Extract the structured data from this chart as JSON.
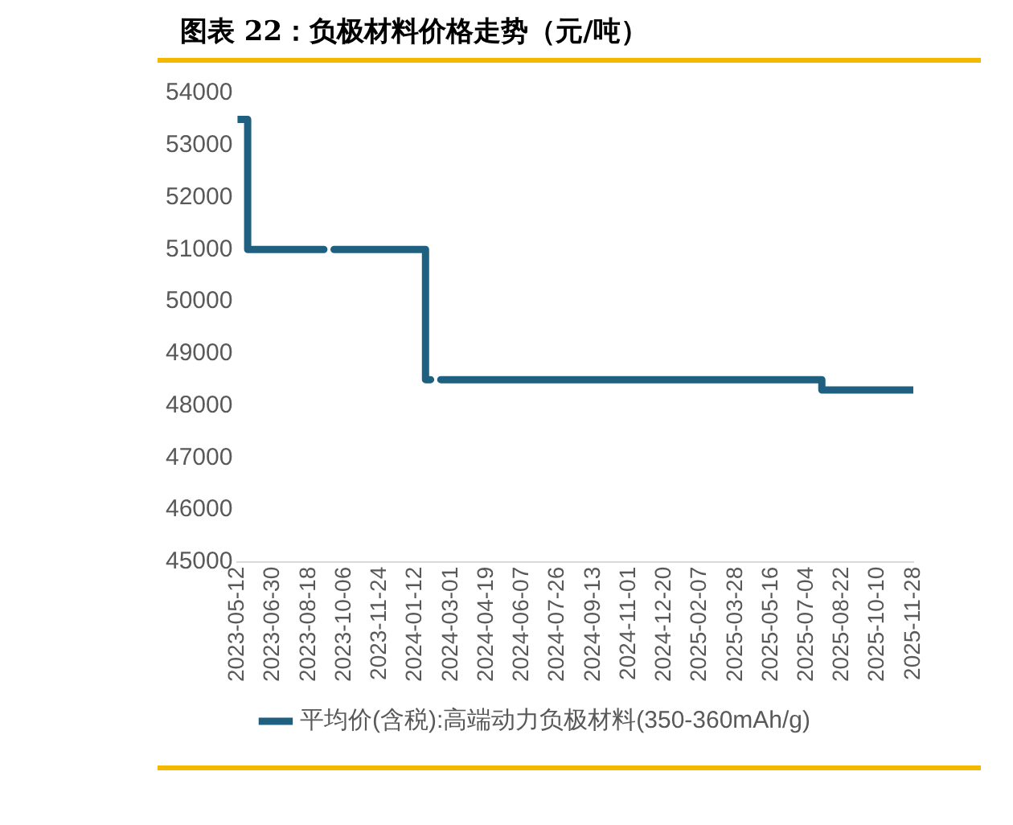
{
  "chart_data": {
    "type": "step",
    "title": "图表 22：负极材料价格走势（元/吨）",
    "x": [
      "2023-05-12",
      "2023-05-19",
      "2023-05-26",
      "2023-09-08",
      "2023-09-15",
      "2023-09-22",
      "2024-01-19",
      "2024-01-26",
      "2024-02-02",
      "2024-02-09",
      "2024-02-16",
      "2025-07-18",
      "2025-07-25",
      "2025-11-28"
    ],
    "series": [
      {
        "name": "平均价(含税):高端动力负极材料(350-360mAh/g)",
        "color": "#1f5f7f",
        "values": [
          53500,
          53500,
          51000,
          51000,
          null,
          51000,
          51000,
          48500,
          48500,
          null,
          48500,
          48500,
          48300,
          48300
        ]
      }
    ],
    "xlim": [
      "2023-05-12",
      "2025-11-28"
    ],
    "xticks": [
      "2023-05-12",
      "2023-06-30",
      "2023-08-18",
      "2023-10-06",
      "2023-11-24",
      "2024-01-12",
      "2024-03-01",
      "2024-04-19",
      "2024-06-07",
      "2024-07-26",
      "2024-09-13",
      "2024-11-01",
      "2024-12-20",
      "2025-02-07",
      "2025-03-28",
      "2025-05-16",
      "2025-07-04",
      "2025-08-22",
      "2025-10-10",
      "2025-11-28"
    ],
    "ylim": [
      45000,
      54000
    ],
    "yticks": [
      45000,
      46000,
      47000,
      48000,
      49000,
      50000,
      51000,
      52000,
      53000,
      54000
    ],
    "grid": false,
    "legend": "bottom",
    "marker": "none",
    "line_style": "solid"
  }
}
